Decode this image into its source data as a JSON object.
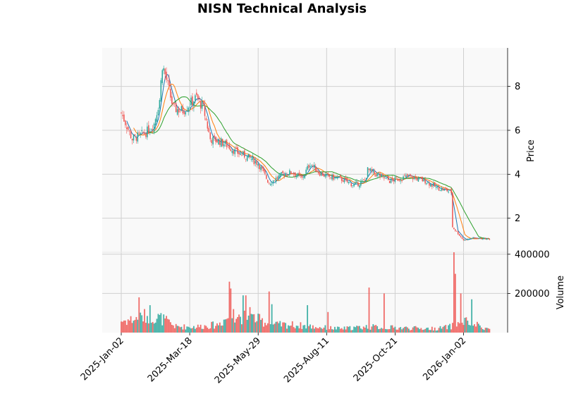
{
  "chart_data": {
    "type": "candlestick",
    "title": "NISN Technical Analysis",
    "price_panel": {
      "ylabel": "Price",
      "yticks": [
        2,
        4,
        6,
        8
      ],
      "ylim": [
        0.45,
        9.75
      ],
      "grid": true
    },
    "volume_panel": {
      "ylabel": "Volume",
      "yticks": [
        200000,
        400000
      ],
      "ytick_labels": [
        "200000",
        "400000"
      ],
      "ylim": [
        0,
        410000
      ],
      "grid": true
    },
    "x_axis": {
      "tick_labels": [
        "2025-Jan-02",
        "2025-Mar-18",
        "2025-May-29",
        "2025-Aug-11",
        "2025-Oct-21",
        "2026-Jan-02"
      ],
      "tick_bar_index": [
        0,
        50,
        100,
        150,
        200,
        250
      ],
      "bar_count": 270
    },
    "colors": {
      "up": "#26a69a",
      "down": "#ef5350",
      "ma_fast": "#1f77b4",
      "ma_mid": "#ff7f0e",
      "ma_slow": "#2ca02c",
      "panel_bg": "#f9f9f9",
      "grid": "#d0d0d0"
    },
    "price_keypoints": [
      [
        0,
        6.8
      ],
      [
        8,
        5.6
      ],
      [
        18,
        5.9
      ],
      [
        24,
        6.3
      ],
      [
        28,
        7.4
      ],
      [
        30,
        9.0
      ],
      [
        33,
        8.3
      ],
      [
        38,
        7.0
      ],
      [
        45,
        6.9
      ],
      [
        55,
        7.5
      ],
      [
        60,
        7.0
      ],
      [
        65,
        5.6
      ],
      [
        72,
        5.5
      ],
      [
        78,
        5.3
      ],
      [
        84,
        5.0
      ],
      [
        92,
        4.8
      ],
      [
        100,
        4.5
      ],
      [
        108,
        3.6
      ],
      [
        118,
        4.0
      ],
      [
        125,
        4.1
      ],
      [
        132,
        3.8
      ],
      [
        138,
        4.5
      ],
      [
        144,
        4.1
      ],
      [
        150,
        3.9
      ],
      [
        160,
        3.8
      ],
      [
        170,
        3.5
      ],
      [
        178,
        3.7
      ],
      [
        180,
        4.2
      ],
      [
        186,
        4.0
      ],
      [
        196,
        3.7
      ],
      [
        210,
        3.9
      ],
      [
        222,
        3.7
      ],
      [
        230,
        3.4
      ],
      [
        241,
        3.2
      ],
      [
        242,
        1.6
      ],
      [
        250,
        1.0
      ],
      [
        256,
        1.1
      ],
      [
        270,
        1.05
      ]
    ],
    "volume_keypoints": [
      [
        0,
        60000
      ],
      [
        12,
        70000
      ],
      [
        20,
        90000
      ],
      [
        30,
        70000
      ],
      [
        40,
        30000
      ],
      [
        55,
        30000
      ],
      [
        70,
        40000
      ],
      [
        80,
        90000
      ],
      [
        95,
        80000
      ],
      [
        110,
        40000
      ],
      [
        125,
        40000
      ],
      [
        140,
        30000
      ],
      [
        160,
        20000
      ],
      [
        180,
        30000
      ],
      [
        200,
        25000
      ],
      [
        230,
        20000
      ],
      [
        240,
        30000
      ],
      [
        250,
        60000
      ],
      [
        270,
        15000
      ]
    ],
    "volume_spikes": [
      [
        13,
        180000
      ],
      [
        21,
        140000
      ],
      [
        79,
        260000
      ],
      [
        80,
        225000
      ],
      [
        82,
        120000
      ],
      [
        89,
        190000
      ],
      [
        91,
        190000
      ],
      [
        94,
        130000
      ],
      [
        108,
        210000
      ],
      [
        110,
        145000
      ],
      [
        136,
        140000
      ],
      [
        151,
        105000
      ],
      [
        181,
        230000
      ],
      [
        192,
        200000
      ],
      [
        243,
        410000
      ],
      [
        244,
        300000
      ],
      [
        248,
        200000
      ],
      [
        256,
        170000
      ]
    ]
  }
}
